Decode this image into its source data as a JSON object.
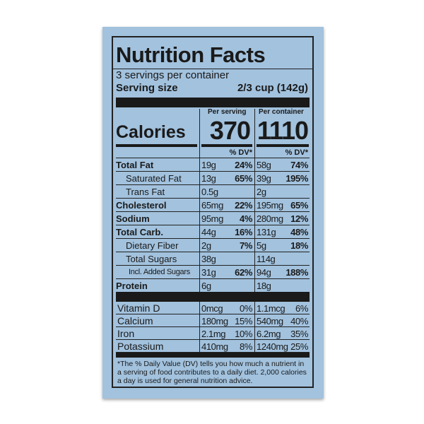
{
  "title": "Nutrition Facts",
  "servings_per_container": "3 servings per container",
  "serving_size_label": "Serving size",
  "serving_size_value": "2/3 cup  (142g)",
  "columns": {
    "per_serving": "Per serving",
    "per_container": "Per container",
    "dv": "% DV*"
  },
  "calories": {
    "label": "Calories",
    "per_serving": "370",
    "per_container": "1110"
  },
  "nutrients": [
    {
      "name": "Total Fat",
      "bold": true,
      "indent": 0,
      "s_amt": "19g",
      "s_dv": "24%",
      "c_amt": "58g",
      "c_dv": "74%"
    },
    {
      "name": "Saturated Fat",
      "bold": false,
      "indent": 1,
      "s_amt": "13g",
      "s_dv": "65%",
      "c_amt": "39g",
      "c_dv": "195%"
    },
    {
      "name": "Trans Fat",
      "bold": false,
      "indent": 1,
      "s_amt": "0.5g",
      "s_dv": "",
      "c_amt": "2g",
      "c_dv": ""
    },
    {
      "name": "Cholesterol",
      "bold": true,
      "indent": 0,
      "s_amt": "65mg",
      "s_dv": "22%",
      "c_amt": "195mg",
      "c_dv": "65%"
    },
    {
      "name": "Sodium",
      "bold": true,
      "indent": 0,
      "s_amt": "95mg",
      "s_dv": "4%",
      "c_amt": "280mg",
      "c_dv": "12%"
    },
    {
      "name": "Total Carb.",
      "bold": true,
      "indent": 0,
      "s_amt": "44g",
      "s_dv": "16%",
      "c_amt": "131g",
      "c_dv": "48%"
    },
    {
      "name": "Dietary Fiber",
      "bold": false,
      "indent": 1,
      "s_amt": "2g",
      "s_dv": "7%",
      "c_amt": "5g",
      "c_dv": "18%"
    },
    {
      "name": "Total Sugars",
      "bold": false,
      "indent": 1,
      "s_amt": "38g",
      "s_dv": "",
      "c_amt": "114g",
      "c_dv": ""
    },
    {
      "name": "Incl. Added Sugars",
      "bold": false,
      "indent": 2,
      "s_amt": "31g",
      "s_dv": "62%",
      "c_amt": "94g",
      "c_dv": "188%"
    },
    {
      "name": "Protein",
      "bold": true,
      "indent": 0,
      "s_amt": "6g",
      "s_dv": "",
      "c_amt": "18g",
      "c_dv": ""
    }
  ],
  "vitamins": [
    {
      "name": "Vitamin D",
      "s_amt": "0mcg",
      "s_dv": "0%",
      "c_amt": "1.1mcg",
      "c_dv": "6%"
    },
    {
      "name": "Calcium",
      "s_amt": "180mg",
      "s_dv": "15%",
      "c_amt": "540mg",
      "c_dv": "40%"
    },
    {
      "name": "Iron",
      "s_amt": "2.1mg",
      "s_dv": "10%",
      "c_amt": "6.2mg",
      "c_dv": "35%"
    },
    {
      "name": "Potassium",
      "s_amt": "410mg",
      "s_dv": "8%",
      "c_amt": "1240mg",
      "c_dv": "25%"
    }
  ],
  "footnote": "*The % Daily Value (DV) tells you how much a nutrient in a serving of food contributes to a daily diet. 2,000 calories a day is used for general nutrition advice.",
  "colors": {
    "background": "#a2c2de",
    "ink": "#1a1a1a"
  }
}
